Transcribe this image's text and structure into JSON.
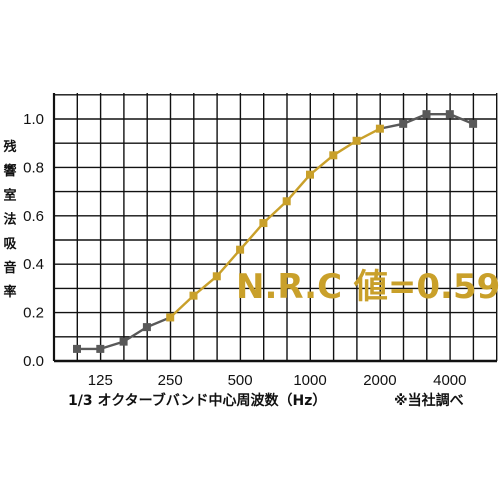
{
  "chart_data": {
    "type": "line",
    "ylabel_chars": [
      "残",
      "響",
      "室",
      "法",
      "吸",
      "音",
      "率"
    ],
    "xlabel": "1/3 オクターブバンド中心周波数（Hz）",
    "note": "※当社調べ",
    "annotation": "N.R.C 値=0.59",
    "ylim": [
      0,
      1.0
    ],
    "y_ticks": [
      "0.0",
      "0.2",
      "0.4",
      "0.6",
      "0.8",
      "1.0"
    ],
    "x_tick_labels": [
      "125",
      "250",
      "500",
      "1000",
      "2000",
      "4000"
    ],
    "x_tick_index": [
      1,
      4,
      7,
      10,
      13,
      16
    ],
    "x": [
      "100",
      "125",
      "160",
      "200",
      "250",
      "315",
      "400",
      "500",
      "630",
      "800",
      "1000",
      "1250",
      "1600",
      "2000",
      "2500",
      "3150",
      "4000",
      "5000"
    ],
    "values": [
      0.05,
      0.05,
      0.08,
      0.14,
      0.18,
      0.27,
      0.35,
      0.46,
      0.57,
      0.66,
      0.77,
      0.85,
      0.91,
      0.96,
      0.98,
      1.02,
      1.02,
      0.98
    ],
    "highlight_range": [
      4,
      13
    ],
    "colors": {
      "base": "#595959",
      "highlight": "#c9a02a",
      "grid": "#111111",
      "axis": "#111111"
    },
    "grid": true
  }
}
